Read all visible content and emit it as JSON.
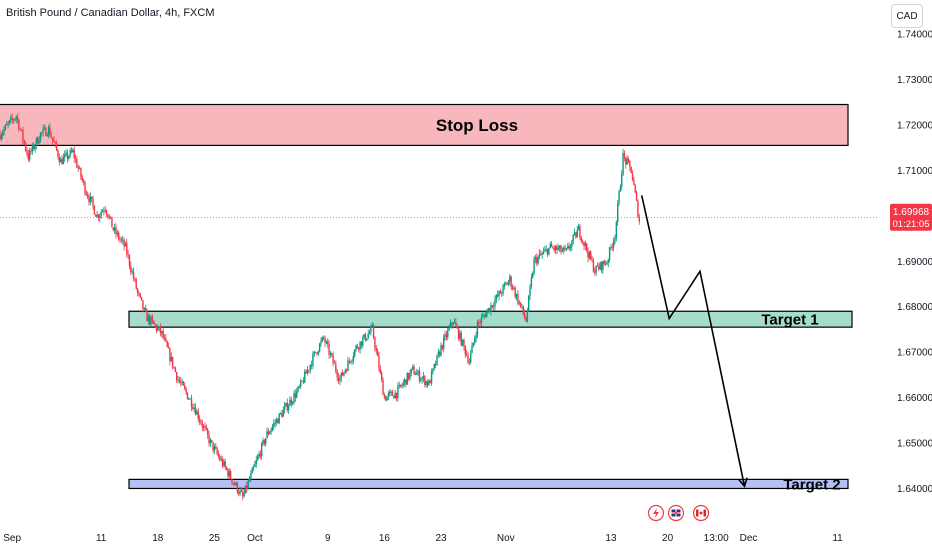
{
  "header": {
    "title": "British Pound / Canadian Dollar, 4h, FXCM",
    "currency": "CAD"
  },
  "price_tag": {
    "price": "1.69968",
    "countdown": "01:21:05",
    "color": "#f23645"
  },
  "colors": {
    "up": "#089981",
    "down": "#f23645",
    "stop_zone": "#f7b7bd",
    "target1_zone": "#a6dccc",
    "target2_zone": "#b3c1f5"
  },
  "zones": [
    {
      "label": "Stop Loss",
      "low": 1.7155,
      "high": 1.7245
    },
    {
      "label": "Target 1",
      "low": 1.6755,
      "high": 1.679
    },
    {
      "label": "Target 2",
      "low": 1.64,
      "high": 1.642
    }
  ],
  "events": [
    {
      "icon": "lightning-icon"
    },
    {
      "icon": "uk-flag-icon"
    },
    {
      "icon": "canada-flag-icon"
    }
  ],
  "chart_data": {
    "type": "candlestick",
    "title": "British Pound / Canadian Dollar, 4h, FXCM",
    "y_ticks": [
      "1.74000",
      "1.73000",
      "1.72000",
      "1.71000",
      "1.70000",
      "1.69000",
      "1.68000",
      "1.67000",
      "1.66000",
      "1.65000",
      "1.64000"
    ],
    "y_values": [
      1.74,
      1.73,
      1.72,
      1.71,
      1.7,
      1.69,
      1.68,
      1.67,
      1.66,
      1.65,
      1.64
    ],
    "ylim": [
      1.6335,
      1.7475
    ],
    "x_ticks": [
      "Sep",
      "11",
      "18",
      "25",
      "Oct",
      "9",
      "16",
      "23",
      "Nov",
      "13",
      "20",
      "13:00",
      "Dec",
      "11"
    ],
    "x_tick_days": [
      0,
      11,
      18,
      25,
      30,
      39,
      46,
      53,
      61,
      74,
      81,
      87,
      91,
      102
    ],
    "xlim": [
      -1.5,
      107
    ],
    "last_price": 1.69968,
    "price_path": [
      [
        -1.5,
        1.718
      ],
      [
        0.5,
        1.722
      ],
      [
        2,
        1.713
      ],
      [
        3.5,
        1.718
      ],
      [
        4.5,
        1.719
      ],
      [
        6,
        1.712
      ],
      [
        7.5,
        1.714
      ],
      [
        9,
        1.706
      ],
      [
        10.5,
        1.7
      ],
      [
        11.5,
        1.702
      ],
      [
        12.5,
        1.697
      ],
      [
        14,
        1.693
      ],
      [
        15.5,
        1.683
      ],
      [
        16.5,
        1.678
      ],
      [
        18.5,
        1.674
      ],
      [
        20.5,
        1.664
      ],
      [
        22.5,
        1.658
      ],
      [
        24.5,
        1.65
      ],
      [
        26.5,
        1.644
      ],
      [
        28.5,
        1.638
      ],
      [
        30,
        1.645
      ],
      [
        31.5,
        1.652
      ],
      [
        33.5,
        1.657
      ],
      [
        35.5,
        1.662
      ],
      [
        37.5,
        1.67
      ],
      [
        38.5,
        1.673
      ],
      [
        40.5,
        1.664
      ],
      [
        42.5,
        1.671
      ],
      [
        44.5,
        1.675
      ],
      [
        46,
        1.66
      ],
      [
        47.5,
        1.661
      ],
      [
        49.5,
        1.666
      ],
      [
        51.5,
        1.663
      ],
      [
        53,
        1.671
      ],
      [
        54.5,
        1.677
      ],
      [
        56.5,
        1.668
      ],
      [
        57.5,
        1.676
      ],
      [
        59.5,
        1.681
      ],
      [
        61.5,
        1.686
      ],
      [
        63.5,
        1.677
      ],
      [
        64.5,
        1.69
      ],
      [
        66.5,
        1.693
      ],
      [
        68.5,
        1.692
      ],
      [
        70,
        1.697
      ],
      [
        72,
        1.688
      ],
      [
        73.5,
        1.69
      ],
      [
        74.5,
        1.696
      ],
      [
        75.5,
        1.713
      ],
      [
        76.5,
        1.71
      ],
      [
        77.5,
        1.699
      ]
    ],
    "forecast_path": [
      [
        77.8,
        1.7045
      ],
      [
        81.2,
        1.6774
      ],
      [
        85,
        1.6878
      ],
      [
        90.5,
        1.6405
      ]
    ]
  }
}
